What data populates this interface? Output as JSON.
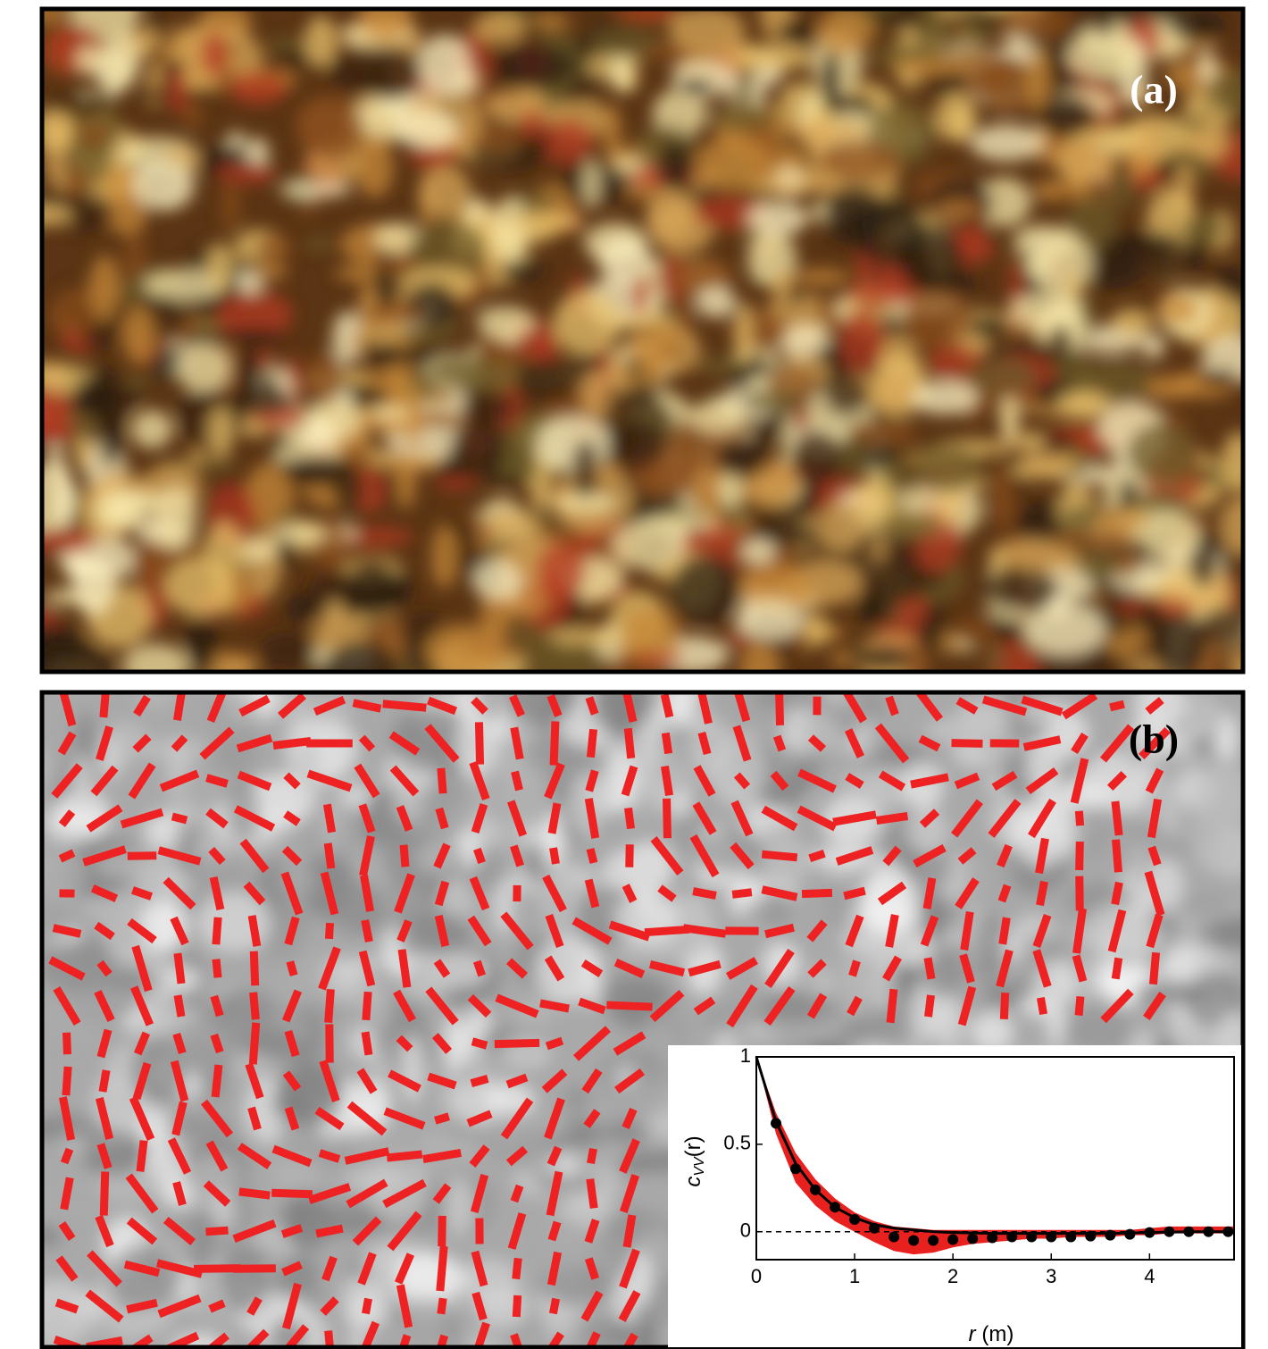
{
  "panels": [
    {
      "label": "(a)"
    },
    {
      "label": "(b)"
    }
  ],
  "chart_data": {
    "type": "scatter",
    "x_label_var": "r",
    "x_label_unit": "(m)",
    "y_label": "c",
    "y_label_sub": "VV",
    "y_label_arg": "(r)",
    "xlim": [
      0,
      4.86
    ],
    "ylim": [
      -0.16,
      1
    ],
    "xticks": [
      0,
      1,
      2,
      3,
      4
    ],
    "yticks": [
      0,
      0.5,
      1
    ],
    "zero_line": true,
    "band": {
      "color": "#e8201e",
      "x": [
        0,
        0.2,
        0.4,
        0.6,
        0.8,
        1.0,
        1.2,
        1.4,
        1.6,
        1.8,
        2.0,
        2.2,
        2.4,
        2.6,
        2.8,
        3.0,
        3.2,
        3.4,
        3.6,
        3.8,
        4.0,
        4.2,
        4.4,
        4.6,
        4.86
      ],
      "lower": [
        1,
        0.56,
        0.28,
        0.15,
        0.06,
        0.0,
        -0.06,
        -0.11,
        -0.13,
        -0.12,
        -0.09,
        -0.07,
        -0.06,
        -0.05,
        -0.04,
        -0.04,
        -0.03,
        -0.03,
        -0.03,
        -0.02,
        -0.02,
        -0.01,
        -0.01,
        -0.01,
        -0.01
      ],
      "upper": [
        1,
        0.68,
        0.45,
        0.3,
        0.19,
        0.11,
        0.06,
        0.03,
        0.02,
        0.01,
        0.01,
        0.01,
        0.01,
        0.01,
        0.01,
        0.01,
        0.01,
        0.01,
        0.01,
        0.01,
        0.02,
        0.03,
        0.03,
        0.03,
        0.03
      ]
    },
    "fit": {
      "color": "#000000",
      "x": [
        0,
        0.2,
        0.4,
        0.6,
        0.8,
        1.0,
        1.2,
        1.4,
        1.6,
        1.8,
        2.0,
        2.4,
        2.8,
        3.2,
        3.6,
        4.0,
        4.4,
        4.86
      ],
      "values": [
        1,
        0.63,
        0.39,
        0.24,
        0.14,
        0.08,
        0.04,
        0.02,
        0.01,
        0.0,
        -0.005,
        -0.01,
        -0.01,
        -0.01,
        -0.01,
        -0.005,
        0.0,
        0.0
      ]
    },
    "dots": {
      "color": "#000000",
      "x": [
        0.2,
        0.4,
        0.6,
        0.8,
        1.0,
        1.2,
        1.4,
        1.6,
        1.8,
        2.0,
        2.2,
        2.4,
        2.6,
        2.8,
        3.0,
        3.2,
        3.4,
        3.6,
        3.8,
        4.0,
        4.2,
        4.4,
        4.6,
        4.8
      ],
      "values": [
        0.62,
        0.36,
        0.24,
        0.14,
        0.07,
        0.02,
        -0.03,
        -0.05,
        -0.05,
        -0.045,
        -0.04,
        -0.035,
        -0.03,
        -0.03,
        -0.03,
        -0.03,
        -0.025,
        -0.02,
        -0.015,
        -0.005,
        0.0,
        0.0,
        0.0,
        0.0
      ]
    }
  }
}
